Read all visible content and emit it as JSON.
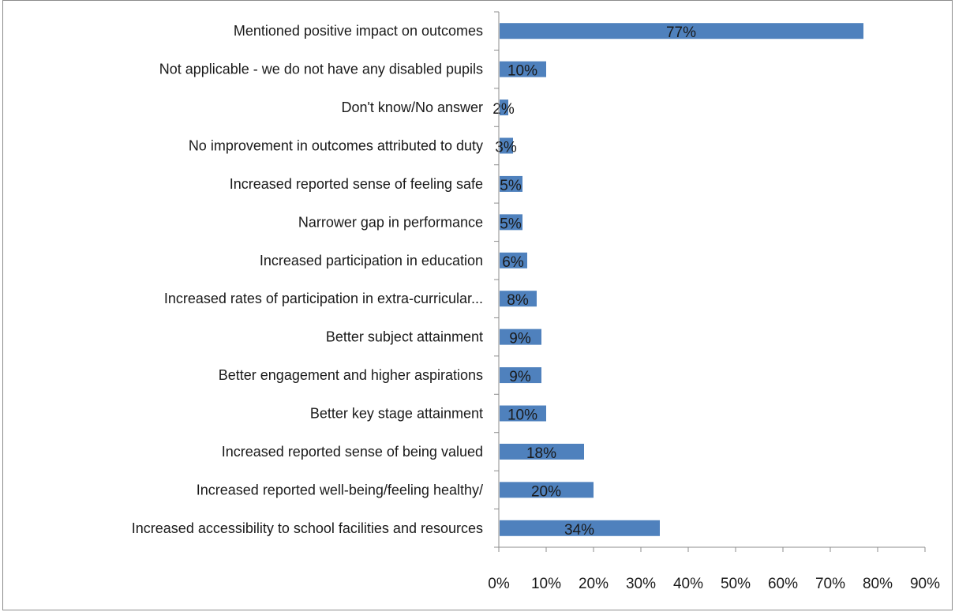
{
  "chart_data": {
    "type": "bar",
    "orientation": "horizontal",
    "categories": [
      "Mentioned positive impact on outcomes",
      "Not applicable - we do not have any disabled pupils",
      "Don't know/No answer",
      "No improvement in outcomes attributed to duty",
      "Increased reported sense of feeling safe",
      "Narrower gap in performance",
      "Increased participation in education",
      "Increased rates of participation in extra-curricular...",
      "Better subject attainment",
      "Better engagement and higher aspirations",
      "Better key stage attainment",
      "Increased reported sense of being valued",
      "Increased reported well-being/feeling healthy/",
      "Increased accessibility  to school facilities and resources"
    ],
    "values": [
      77,
      10,
      2,
      3,
      5,
      5,
      6,
      8,
      9,
      9,
      10,
      18,
      20,
      34
    ],
    "data_labels": [
      "77%",
      "10%",
      "2%",
      "3%",
      "5%",
      "5%",
      "6%",
      "8%",
      "9%",
      "9%",
      "10%",
      "18%",
      "20%",
      "34%"
    ],
    "xlim": [
      0,
      90
    ],
    "xticks": [
      "0%",
      "10%",
      "20%",
      "30%",
      "40%",
      "50%",
      "60%",
      "70%",
      "80%",
      "90%"
    ],
    "bar_color": "#4f81bd",
    "grid": false,
    "legend": "none"
  }
}
